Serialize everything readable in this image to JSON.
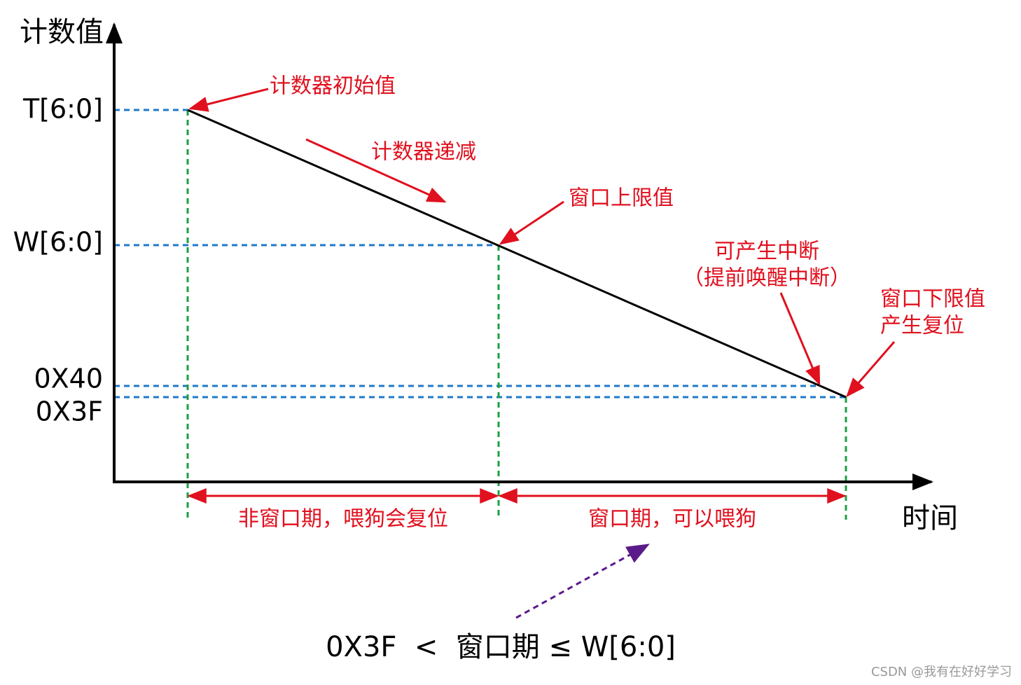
{
  "axes": {
    "y_label": "计数值",
    "x_label": "时间"
  },
  "levels": [
    "T[6:0]",
    "W[6:0]",
    "0X40",
    "0X3F"
  ],
  "annotations": {
    "initial": "计数器初始值",
    "decrement": "计数器递减",
    "upper": "窗口上限值",
    "interrupt": [
      "可产生中断",
      "（提前唤醒中断）"
    ],
    "lower": [
      "窗口下限值",
      "产生复位"
    ]
  },
  "periods": [
    "非窗口期，喂狗会复位",
    "窗口期，可以喂狗"
  ],
  "condition": "0X3F  <  窗口期 ≤ W[6:0]",
  "watermark": "CSDN @我有在好好学习"
}
